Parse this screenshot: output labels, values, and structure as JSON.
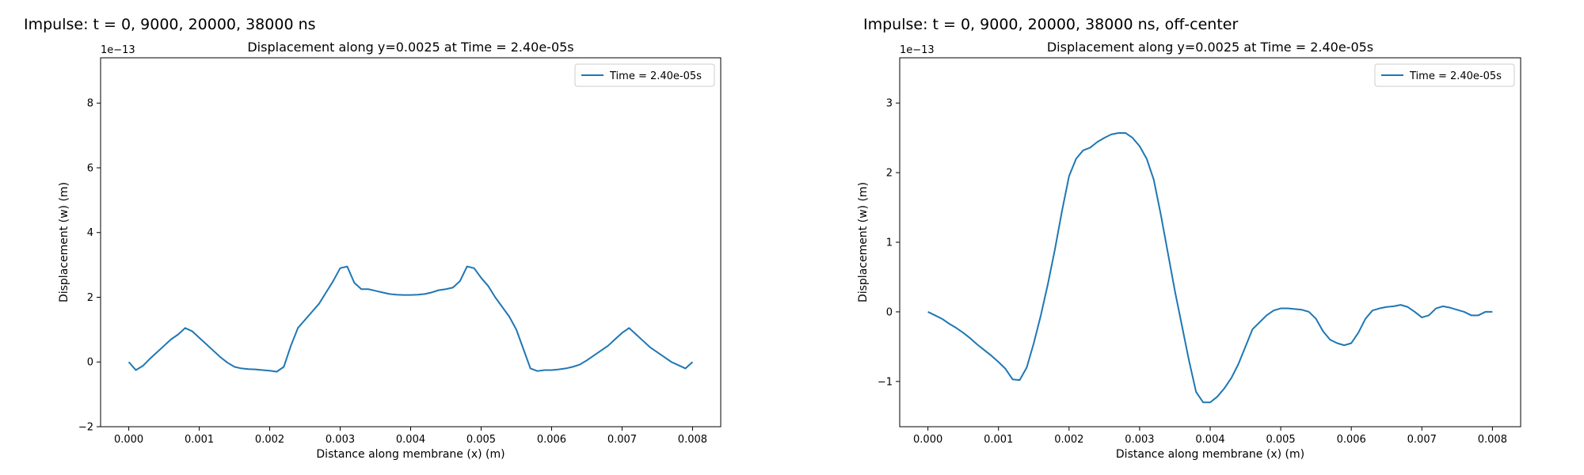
{
  "figure_titles": [
    "Impulse: t = 0, 9000, 20000, 38000 ns",
    "Impulse: t = 0, 9000, 20000, 38000 ns, off-center"
  ],
  "colors": {
    "series": "#1f77b4",
    "axes": "#000000",
    "background": "#ffffff"
  },
  "chart_data": [
    {
      "type": "line",
      "title": "Displacement along y=0.0025 at Time = 2.40e-05s",
      "xlabel": "Distance along membrane (x) (m)",
      "ylabel": "Displacement (w) (m)",
      "y_scale_label": "1e−13",
      "xlim": [
        -0.0004,
        0.0084
      ],
      "ylim": [
        -2.0,
        9.4
      ],
      "xticks": [
        0.0,
        0.001,
        0.002,
        0.003,
        0.004,
        0.005,
        0.006,
        0.007,
        0.008
      ],
      "xtick_labels": [
        "0.000",
        "0.001",
        "0.002",
        "0.003",
        "0.004",
        "0.005",
        "0.006",
        "0.007",
        "0.008"
      ],
      "yticks": [
        -2,
        0,
        2,
        4,
        6,
        8
      ],
      "ytick_labels": [
        "−2",
        "0",
        "2",
        "4",
        "6",
        "8"
      ],
      "grid": false,
      "legend_position": "top-right",
      "series": [
        {
          "name": "Time = 2.40e-05s",
          "x": [
            0.0,
            0.0001,
            0.0002,
            0.0003,
            0.0004,
            0.0005,
            0.0006,
            0.0007,
            0.0008,
            0.0009,
            0.001,
            0.0011,
            0.0012,
            0.0013,
            0.0014,
            0.0015,
            0.0016,
            0.0017,
            0.0018,
            0.0019,
            0.002,
            0.0021,
            0.0022,
            0.0023,
            0.0024,
            0.0025,
            0.0026,
            0.0027,
            0.0028,
            0.0029,
            0.003,
            0.0031,
            0.0032,
            0.0033,
            0.0034,
            0.0035,
            0.0036,
            0.0037,
            0.0038,
            0.0039,
            0.004,
            0.0041,
            0.0042,
            0.0043,
            0.0044,
            0.0045,
            0.0046,
            0.0047,
            0.0048,
            0.0049,
            0.005,
            0.0051,
            0.0052,
            0.0053,
            0.0054,
            0.0055,
            0.0056,
            0.0057,
            0.0058,
            0.0059,
            0.006,
            0.0061,
            0.0062,
            0.0063,
            0.0064,
            0.0065,
            0.0066,
            0.0067,
            0.0068,
            0.0069,
            0.007,
            0.0071,
            0.0072,
            0.0073,
            0.0074,
            0.0075,
            0.0076,
            0.0077,
            0.0078,
            0.0079,
            0.008
          ],
          "y": [
            0.0,
            -0.25,
            -0.12,
            0.1,
            0.3,
            0.5,
            0.7,
            0.85,
            1.05,
            0.95,
            0.75,
            0.55,
            0.35,
            0.15,
            -0.02,
            -0.15,
            -0.2,
            -0.22,
            -0.23,
            -0.25,
            -0.27,
            -0.3,
            -0.15,
            0.5,
            1.05,
            1.3,
            1.55,
            1.8,
            2.15,
            2.5,
            2.9,
            2.95,
            2.45,
            2.25,
            2.25,
            2.2,
            2.15,
            2.1,
            2.08,
            2.07,
            2.07,
            2.08,
            2.1,
            2.15,
            2.22,
            2.25,
            2.3,
            2.5,
            2.95,
            2.9,
            2.6,
            2.35,
            2.0,
            1.7,
            1.4,
            1.0,
            0.4,
            -0.2,
            -0.28,
            -0.25,
            -0.25,
            -0.23,
            -0.2,
            -0.15,
            -0.08,
            0.05,
            0.2,
            0.35,
            0.5,
            0.7,
            0.9,
            1.05,
            0.85,
            0.65,
            0.45,
            0.3,
            0.15,
            0.0,
            -0.1,
            -0.2,
            0.0
          ]
        }
      ]
    },
    {
      "type": "line",
      "title": "Displacement along y=0.0025 at Time = 2.40e-05s",
      "xlabel": "Distance along membrane (x) (m)",
      "ylabel": "Displacement (w) (m)",
      "y_scale_label": "1e−13",
      "xlim": [
        -0.0004,
        0.0084
      ],
      "ylim": [
        -1.65,
        3.65
      ],
      "xticks": [
        0.0,
        0.001,
        0.002,
        0.003,
        0.004,
        0.005,
        0.006,
        0.007,
        0.008
      ],
      "xtick_labels": [
        "0.000",
        "0.001",
        "0.002",
        "0.003",
        "0.004",
        "0.005",
        "0.006",
        "0.007",
        "0.008"
      ],
      "yticks": [
        -1,
        0,
        1,
        2,
        3
      ],
      "ytick_labels": [
        "−1",
        "0",
        "1",
        "2",
        "3"
      ],
      "grid": false,
      "legend_position": "top-right",
      "series": [
        {
          "name": "Time = 2.40e-05s",
          "x": [
            0.0,
            0.0001,
            0.0002,
            0.0003,
            0.0004,
            0.0005,
            0.0006,
            0.0007,
            0.0008,
            0.0009,
            0.001,
            0.0011,
            0.0012,
            0.0013,
            0.0014,
            0.0015,
            0.0016,
            0.0017,
            0.0018,
            0.0019,
            0.002,
            0.0021,
            0.0022,
            0.0023,
            0.0024,
            0.0025,
            0.0026,
            0.0027,
            0.0028,
            0.0029,
            0.003,
            0.0031,
            0.0032,
            0.0033,
            0.0034,
            0.0035,
            0.0036,
            0.0037,
            0.0038,
            0.0039,
            0.004,
            0.0041,
            0.0042,
            0.0043,
            0.0044,
            0.0045,
            0.0046,
            0.0047,
            0.0048,
            0.0049,
            0.005,
            0.0051,
            0.0052,
            0.0053,
            0.0054,
            0.0055,
            0.0056,
            0.0057,
            0.0058,
            0.0059,
            0.006,
            0.0061,
            0.0062,
            0.0063,
            0.0064,
            0.0065,
            0.0066,
            0.0067,
            0.0068,
            0.0069,
            0.007,
            0.0071,
            0.0072,
            0.0073,
            0.0074,
            0.0075,
            0.0076,
            0.0077,
            0.0078,
            0.0079,
            0.008
          ],
          "y": [
            0.0,
            -0.05,
            -0.1,
            -0.17,
            -0.23,
            -0.3,
            -0.38,
            -0.47,
            -0.55,
            -0.63,
            -0.72,
            -0.82,
            -0.97,
            -0.98,
            -0.8,
            -0.45,
            -0.05,
            0.4,
            0.9,
            1.45,
            1.95,
            2.2,
            2.32,
            2.36,
            2.44,
            2.5,
            2.55,
            2.57,
            2.57,
            2.5,
            2.38,
            2.2,
            1.9,
            1.4,
            0.85,
            0.3,
            -0.2,
            -0.7,
            -1.15,
            -1.3,
            -1.3,
            -1.22,
            -1.1,
            -0.95,
            -0.75,
            -0.5,
            -0.25,
            -0.15,
            -0.05,
            0.02,
            0.05,
            0.05,
            0.04,
            0.03,
            0.0,
            -0.1,
            -0.28,
            -0.4,
            -0.45,
            -0.48,
            -0.45,
            -0.3,
            -0.1,
            0.02,
            0.05,
            0.07,
            0.08,
            0.1,
            0.07,
            0.0,
            -0.08,
            -0.05,
            0.05,
            0.08,
            0.06,
            0.03,
            0.0,
            -0.05,
            -0.05,
            0.0,
            0.0
          ]
        }
      ]
    }
  ]
}
